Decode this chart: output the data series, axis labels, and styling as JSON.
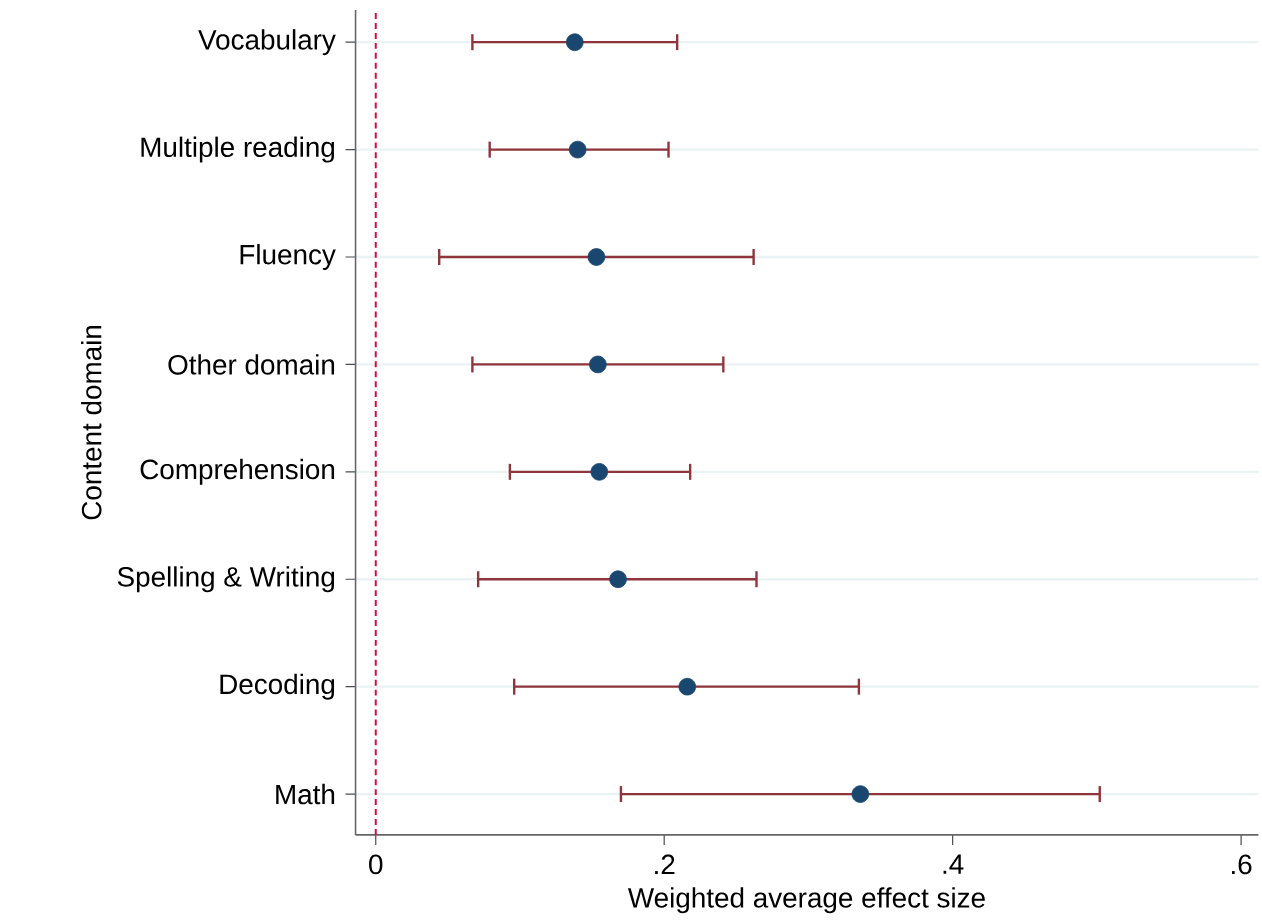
{
  "chart_data": {
    "type": "scatter",
    "orientation": "horizontal",
    "ylabel": "Content domain",
    "xlabel": "Weighted average effect size",
    "categories": [
      "Vocabulary",
      "Multiple reading",
      "Fluency",
      "Other domain",
      "Comprehension",
      "Spelling & Writing",
      "Decoding",
      "Math"
    ],
    "values": [
      0.138,
      0.14,
      0.153,
      0.154,
      0.155,
      0.168,
      0.216,
      0.336
    ],
    "errors": [
      [
        0.067,
        0.209
      ],
      [
        0.079,
        0.203
      ],
      [
        0.044,
        0.262
      ],
      [
        0.067,
        0.241
      ],
      [
        0.093,
        0.218
      ],
      [
        0.071,
        0.264
      ],
      [
        0.096,
        0.335
      ],
      [
        0.17,
        0.502
      ]
    ],
    "color": "#1a476f",
    "marker": "circle",
    "grid": "y",
    "xlim": [
      -0.014,
      0.612
    ],
    "xticks": [
      0,
      {
        "value": 0.2,
        "label": ".2"
      },
      {
        "value": 0.4,
        "label": ".4"
      },
      {
        "value": 0.6,
        "label": ".6"
      }
    ],
    "ref_lines": [
      {
        "axis": "x",
        "value": 0,
        "color": "#d0103a",
        "line_style": "dashed"
      }
    ]
  }
}
